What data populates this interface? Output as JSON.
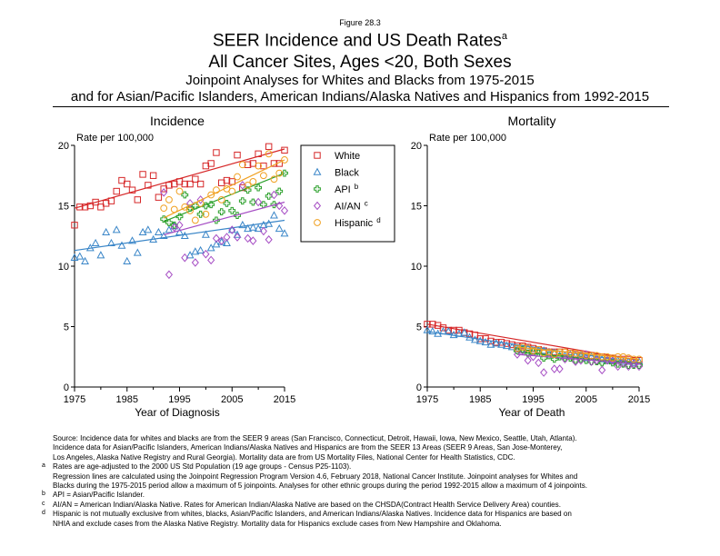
{
  "figure_label": "Figure 28.3",
  "title": {
    "line1": "SEER Incidence and US Death Rates",
    "line1_sup": "a",
    "line2": "All Cancer Sites, Ages <20, Both Sexes",
    "line3": "Joinpoint Analyses for Whites and Blacks from 1975-2015",
    "line4": "and for Asian/Pacific Islanders, American Indians/Alaska Natives and Hispanics from 1992-2015"
  },
  "colors": {
    "White": "#d62728",
    "Black": "#3a86c8",
    "API": "#2ca02c",
    "AI/AN": "#a64dc4",
    "Hispanic": "#f0a020"
  },
  "legend": [
    {
      "name": "White",
      "sup": ""
    },
    {
      "name": "Black",
      "sup": ""
    },
    {
      "name": "API",
      "sup": "b"
    },
    {
      "name": "AI/AN",
      "sup": "c"
    },
    {
      "name": "Hispanic",
      "sup": "d"
    }
  ],
  "chart_data": [
    {
      "type": "scatter",
      "title": "Incidence",
      "ylabel": "Rate per 100,000",
      "xlabel": "Year of Diagnosis",
      "xlim": [
        1975,
        2015
      ],
      "ylim": [
        0,
        20
      ],
      "xticks": [
        1975,
        1985,
        1995,
        2005,
        2015
      ],
      "yticks": [
        0,
        5,
        10,
        15,
        20
      ],
      "series": [
        {
          "name": "White",
          "marker": "square",
          "x_start": 1975,
          "values": [
            13.4,
            14.9,
            14.9,
            15.0,
            15.3,
            14.9,
            15.2,
            15.4,
            16.2,
            17.1,
            16.8,
            16.3,
            15.5,
            17.6,
            16.7,
            17.5,
            15.7,
            16.4,
            16.7,
            16.8,
            17.0,
            16.8,
            16.8,
            17.2,
            16.8,
            18.3,
            18.5,
            19.4,
            16.9,
            17.1,
            17.0,
            19.2,
            16.5,
            18.4,
            18.5,
            19.3,
            18.3,
            19.9,
            18.5,
            18.5,
            19.6
          ],
          "trend": [
            [
              1975,
              14.8
            ],
            [
              2015,
              19.7
            ]
          ]
        },
        {
          "name": "Black",
          "marker": "triangle",
          "x_start": 1975,
          "values": [
            10.7,
            10.8,
            10.4,
            11.5,
            11.9,
            10.9,
            12.8,
            11.9,
            13.0,
            11.7,
            10.4,
            12.1,
            11.1,
            12.8,
            13.0,
            12.2,
            12.8,
            12.5,
            13.0,
            13.3,
            12.8,
            12.5,
            10.9,
            11.2,
            11.3,
            12.6,
            11.5,
            11.8,
            12.0,
            11.9,
            13.0,
            12.6,
            13.4,
            13.1,
            13.2,
            13.1,
            13.4,
            13.5,
            14.2,
            13.1,
            12.7
          ],
          "trend": [
            [
              1975,
              11.3
            ],
            [
              2015,
              13.8
            ]
          ]
        },
        {
          "name": "API",
          "marker": "plus",
          "x_start": 1992,
          "values": [
            13.9,
            13.6,
            13.4,
            14.1,
            15.9,
            14.8,
            15.0,
            14.3,
            15.0,
            15.1,
            13.8,
            14.5,
            15.2,
            14.6,
            14.2,
            15.4,
            16.3,
            15.3,
            16.5,
            15.1,
            15.8,
            15.1,
            16.2,
            17.7
          ],
          "trend": [
            [
              1992,
              13.7
            ],
            [
              2015,
              17.7
            ]
          ]
        },
        {
          "name": "AI/AN",
          "marker": "diamond",
          "x_start": 1992,
          "values": [
            16.1,
            9.3,
            13.2,
            13.4,
            10.7,
            15.2,
            10.3,
            15.5,
            11.0,
            10.5,
            12.3,
            12.1,
            12.4,
            13.0,
            12.4,
            16.7,
            12.3,
            12.1,
            15.3,
            12.9,
            12.2,
            15.9,
            15.0,
            14.6
          ],
          "trend": [
            [
              1992,
              12.6
            ],
            [
              2015,
              15.3
            ]
          ]
        },
        {
          "name": "Hispanic",
          "marker": "circle",
          "x_start": 1992,
          "values": [
            14.8,
            15.5,
            14.7,
            16.2,
            14.9,
            14.6,
            13.8,
            15.2,
            14.3,
            15.9,
            16.3,
            15.5,
            16.4,
            16.2,
            17.4,
            18.4,
            16.7,
            17.0,
            18.3,
            17.5,
            19.3,
            17.2,
            17.7,
            18.8
          ],
          "trend": [
            [
              1992,
              14.0
            ],
            [
              2015,
              18.8
            ]
          ]
        }
      ]
    },
    {
      "type": "scatter",
      "title": "Mortality",
      "ylabel": "Rate per 100,000",
      "xlabel": "Year of Death",
      "xlim": [
        1975,
        2015
      ],
      "ylim": [
        0,
        20
      ],
      "xticks": [
        1975,
        1985,
        1995,
        2005,
        2015
      ],
      "yticks": [
        0,
        5,
        10,
        15,
        20
      ],
      "series": [
        {
          "name": "White",
          "marker": "square",
          "x_start": 1975,
          "values": [
            5.2,
            5.2,
            5.1,
            4.9,
            4.7,
            4.7,
            4.7,
            4.5,
            4.4,
            4.3,
            4.0,
            4.0,
            3.8,
            3.7,
            3.7,
            3.6,
            3.5,
            3.4,
            3.4,
            3.3,
            3.2,
            3.1,
            3.0,
            2.9,
            2.9,
            2.9,
            2.9,
            2.8,
            2.7,
            2.6,
            2.6,
            2.6,
            2.5,
            2.5,
            2.4,
            2.4,
            2.3,
            2.3,
            2.3,
            2.2,
            2.2
          ],
          "trend": [
            [
              1975,
              5.2
            ],
            [
              2015,
              2.2
            ]
          ]
        },
        {
          "name": "Black",
          "marker": "triangle",
          "x_start": 1975,
          "values": [
            4.7,
            4.6,
            4.4,
            4.6,
            4.6,
            4.3,
            4.4,
            4.5,
            4.1,
            3.9,
            3.8,
            3.7,
            3.5,
            3.6,
            3.5,
            3.4,
            3.3,
            3.2,
            3.1,
            3.2,
            3.0,
            3.0,
            3.0,
            2.8,
            2.8,
            2.6,
            2.6,
            2.7,
            2.6,
            2.6,
            2.4,
            2.5,
            2.4,
            2.3,
            2.2,
            2.2,
            2.2,
            2.1,
            2.1,
            2.0,
            2.1
          ],
          "trend": [
            [
              1975,
              4.6
            ],
            [
              2015,
              2.0
            ]
          ]
        },
        {
          "name": "API",
          "marker": "plus",
          "x_start": 1992,
          "values": [
            3.0,
            3.1,
            2.8,
            2.9,
            2.8,
            2.4,
            2.6,
            2.3,
            2.5,
            2.4,
            2.4,
            2.2,
            2.3,
            2.2,
            2.1,
            2.1,
            2.0,
            2.2,
            2.0,
            1.9,
            1.9,
            1.8,
            1.8,
            1.8
          ],
          "trend": [
            [
              1992,
              2.9
            ],
            [
              2015,
              1.9
            ]
          ]
        },
        {
          "name": "AI/AN",
          "marker": "diamond",
          "x_start": 1992,
          "values": [
            2.7,
            3.0,
            2.2,
            2.5,
            2.0,
            1.2,
            2.9,
            1.5,
            1.5,
            2.3,
            2.6,
            2.1,
            2.2,
            2.7,
            2.1,
            2.2,
            1.4,
            2.2,
            2.2,
            1.7,
            2.0,
            1.7,
            1.9,
            1.7
          ],
          "trend": [
            [
              1992,
              2.7
            ],
            [
              2015,
              1.9
            ]
          ]
        },
        {
          "name": "Hispanic",
          "marker": "circle",
          "x_start": 1992,
          "values": [
            3.2,
            3.3,
            3.2,
            3.0,
            3.1,
            2.8,
            2.9,
            2.7,
            2.9,
            2.9,
            2.8,
            2.8,
            2.7,
            2.6,
            2.6,
            2.6,
            2.5,
            2.5,
            2.4,
            2.5,
            2.5,
            2.4,
            2.3,
            2.3
          ],
          "trend": [
            [
              1992,
              3.3
            ],
            [
              2015,
              2.3
            ]
          ]
        }
      ]
    }
  ],
  "footnotes": [
    {
      "marker": "",
      "lines": [
        "Source:  Incidence data for whites and blacks are from the SEER 9 areas (San Francisco, Connecticut, Detroit, Hawaii, Iowa, New Mexico, Seattle, Utah, Atlanta).",
        "Incidence data for Asian/Pacific Islanders, American Indians/Alaska Natives and Hispanics are from the SEER 13 Areas (SEER 9 Areas, San Jose-Monterey,",
        "Los Angeles, Alaska Native Registry and Rural Georgia).  Mortality data are from US Mortality Files, National Center for Health Statistics, CDC."
      ]
    },
    {
      "marker": "a",
      "lines": [
        "Rates are age-adjusted to the 2000 US Std Population (19 age groups - Census P25-1103).",
        "Regression lines are calculated using the Joinpoint Regression Program Version 4.6, February 2018, National Cancer Institute.  Joinpoint analyses for Whites and",
        "Blacks during the 1975-2015 period allow a maximum of 5 joinpoints.  Analyses for other ethnic groups during the period 1992-2015 allow a maximum of 4 joinpoints."
      ]
    },
    {
      "marker": "b",
      "lines": [
        "API = Asian/Pacific Islander."
      ]
    },
    {
      "marker": "c",
      "lines": [
        "AI/AN = American Indian/Alaska Native.  Rates for American Indian/Alaska Native are based on the CHSDA(Contract Health Service Delivery Area) counties."
      ]
    },
    {
      "marker": "d",
      "lines": [
        "Hispanic is not mutually exclusive from whites, blacks, Asian/Pacific Islanders, and American Indians/Alaska Natives.  Incidence data for Hispanics are based on",
        "NHIA and exclude cases from the Alaska Native Registry.  Mortality data for Hispanics exclude cases from New Hampshire and Oklahoma."
      ]
    }
  ]
}
